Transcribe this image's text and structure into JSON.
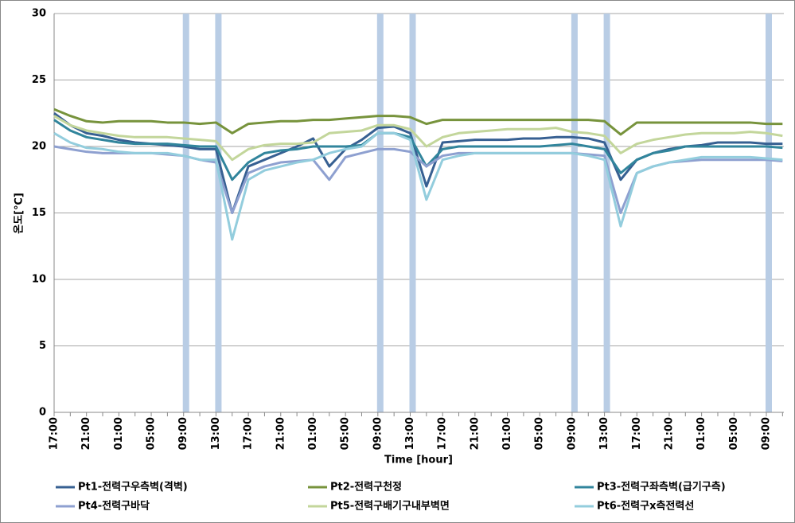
{
  "chart_data": {
    "type": "line",
    "xlabel": "Time [hour]",
    "ylabel": "온도[℃]",
    "categories": [
      "17:00",
      null,
      "21:00",
      null,
      "01:00",
      null,
      "05:00",
      null,
      "09:00",
      null,
      "13:00",
      null,
      "17:00",
      null,
      "21:00",
      null,
      "01:00",
      null,
      "05:00",
      null,
      "09:00",
      null,
      "13:00",
      null,
      "17:00",
      null,
      "21:00",
      null,
      "01:00",
      null,
      "05:00",
      null,
      "09:00",
      null,
      "13:00",
      null,
      "17:00",
      null,
      "21:00",
      null,
      "01:00",
      null,
      "05:00",
      null,
      "09:00",
      null
    ],
    "highlights": [
      8,
      10,
      20,
      22,
      32,
      34,
      44
    ],
    "highlight_color": "#b9cde5",
    "ylim": [
      0,
      30
    ],
    "yticks": [
      0,
      5,
      10,
      15,
      20,
      25,
      30
    ],
    "grid": true,
    "series": [
      {
        "name": "Pt1-전력구우측벽(격벽)",
        "color": "#376092",
        "values": [
          22.5,
          21.6,
          21.0,
          20.8,
          20.5,
          20.3,
          20.2,
          20.1,
          20.0,
          19.8,
          19.8,
          15.0,
          18.5,
          19.0,
          19.5,
          20.0,
          20.6,
          18.5,
          19.8,
          20.5,
          21.4,
          21.5,
          21.0,
          17.0,
          20.3,
          20.4,
          20.5,
          20.5,
          20.5,
          20.6,
          20.6,
          20.7,
          20.7,
          20.6,
          20.3,
          17.5,
          19.0,
          19.5,
          19.8,
          20.0,
          20.1,
          20.3,
          20.3,
          20.3,
          20.2,
          20.2
        ]
      },
      {
        "name": "Pt2-전력구천정",
        "color": "#77933c",
        "values": [
          22.8,
          22.3,
          21.9,
          21.8,
          21.9,
          21.9,
          21.9,
          21.8,
          21.8,
          21.7,
          21.8,
          21.0,
          21.7,
          21.8,
          21.9,
          21.9,
          22.0,
          22.0,
          22.1,
          22.2,
          22.3,
          22.3,
          22.2,
          21.7,
          22.0,
          22.0,
          22.0,
          22.0,
          22.0,
          22.0,
          22.0,
          22.0,
          22.0,
          22.0,
          21.9,
          20.9,
          21.8,
          21.8,
          21.8,
          21.8,
          21.8,
          21.8,
          21.8,
          21.8,
          21.7,
          21.7
        ]
      },
      {
        "name": "Pt3-전력구좌측벽(급기구측)",
        "color": "#31859c",
        "values": [
          22.0,
          21.2,
          20.7,
          20.5,
          20.3,
          20.2,
          20.2,
          20.2,
          20.1,
          20.0,
          20.0,
          17.5,
          18.8,
          19.5,
          19.7,
          19.8,
          20.0,
          20.0,
          20.0,
          20.1,
          21.0,
          21.0,
          20.7,
          18.5,
          19.8,
          20.0,
          20.0,
          20.0,
          20.0,
          20.0,
          20.0,
          20.1,
          20.2,
          20.0,
          19.8,
          18.0,
          19.0,
          19.5,
          19.7,
          20.0,
          20.0,
          20.0,
          20.0,
          20.0,
          20.0,
          19.9
        ]
      },
      {
        "name": "Pt4-전력구바닥",
        "color": "#8ea0d0",
        "values": [
          20.0,
          19.8,
          19.6,
          19.5,
          19.5,
          19.5,
          19.5,
          19.4,
          19.3,
          19.0,
          18.8,
          15.0,
          18.0,
          18.5,
          18.8,
          18.9,
          19.0,
          17.5,
          19.2,
          19.5,
          19.8,
          19.8,
          19.6,
          18.5,
          19.3,
          19.5,
          19.5,
          19.5,
          19.5,
          19.5,
          19.5,
          19.5,
          19.5,
          19.4,
          19.3,
          15.0,
          18.0,
          18.5,
          18.8,
          18.9,
          19.0,
          19.0,
          19.0,
          19.0,
          19.0,
          18.9
        ]
      },
      {
        "name": "Pt5-전력구배기구내부벽면",
        "color": "#c3d69b",
        "values": [
          22.3,
          21.6,
          21.2,
          21.0,
          20.8,
          20.7,
          20.7,
          20.7,
          20.6,
          20.5,
          20.4,
          19.0,
          19.8,
          20.1,
          20.2,
          20.2,
          20.3,
          21.0,
          21.1,
          21.2,
          21.6,
          21.6,
          21.3,
          20.0,
          20.7,
          21.0,
          21.1,
          21.2,
          21.3,
          21.3,
          21.3,
          21.4,
          21.1,
          21.0,
          20.8,
          19.5,
          20.2,
          20.5,
          20.7,
          20.9,
          21.0,
          21.0,
          21.0,
          21.1,
          21.0,
          20.8
        ]
      },
      {
        "name": "Pt6-전력구x측전력선",
        "color": "#93cddd",
        "values": [
          21.0,
          20.3,
          19.9,
          19.8,
          19.6,
          19.5,
          19.5,
          19.5,
          19.3,
          19.0,
          19.0,
          13.0,
          17.5,
          18.2,
          18.5,
          18.8,
          19.0,
          19.5,
          19.8,
          20.0,
          21.0,
          21.0,
          20.5,
          16.0,
          19.0,
          19.3,
          19.5,
          19.5,
          19.5,
          19.5,
          19.5,
          19.5,
          19.5,
          19.3,
          19.0,
          14.0,
          18.0,
          18.5,
          18.8,
          19.0,
          19.2,
          19.2,
          19.2,
          19.2,
          19.1,
          19.0
        ]
      }
    ]
  }
}
